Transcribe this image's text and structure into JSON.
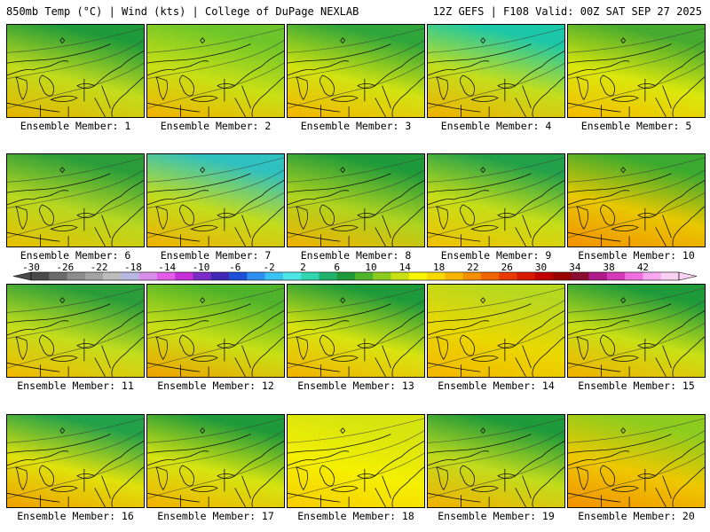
{
  "header": {
    "left": "850mb Temp (°C) | Wind (kts) | College of DuPage NEXLAB",
    "right": "12Z GEFS | F108 Valid: 00Z SAT SEP 27 2025"
  },
  "legend": {
    "tick_labels": [
      "-30",
      "-26",
      "-22",
      "-18",
      "-14",
      "-10",
      "-6",
      "-2",
      "2",
      "6",
      "10",
      "14",
      "18",
      "22",
      "26",
      "30",
      "34",
      "38",
      "42"
    ],
    "colors": [
      "#4a4a4a",
      "#6b6b6b",
      "#8c8c8c",
      "#a3a3a3",
      "#bdbdbd",
      "#b7b7e4",
      "#d98fea",
      "#e25ce8",
      "#c72fd6",
      "#7b2bc6",
      "#4127b8",
      "#1d4fd9",
      "#2f8ff0",
      "#38c3f3",
      "#4de5e8",
      "#2fd6b0",
      "#20b26a",
      "#1f9a3a",
      "#4eb32a",
      "#8ccc1f",
      "#c9e015",
      "#f7f500",
      "#f7d900",
      "#f7b500",
      "#f58f00",
      "#ef6500",
      "#e63a00",
      "#d81b00",
      "#c00000",
      "#9a0000",
      "#8a0c2e",
      "#b01a8c",
      "#d63ab8",
      "#f06fe0",
      "#f7a8f0",
      "#fad0f5"
    ]
  },
  "members": [
    {
      "label": "Ensemble Member: 1",
      "south": "#e6b400",
      "mid": "#c3dc1c",
      "north": "#1f9a3a"
    },
    {
      "label": "Ensemble Member: 2",
      "south": "#f2b100",
      "mid": "#c9e015",
      "north": "#6cc52a"
    },
    {
      "label": "Ensemble Member: 3",
      "south": "#f5b400",
      "mid": "#d2e310",
      "north": "#2fa53a"
    },
    {
      "label": "Ensemble Member: 4",
      "south": "#f0b000",
      "mid": "#c4de1c",
      "north": "#1bc7a8"
    },
    {
      "label": "Ensemble Member: 5",
      "south": "#f5bb00",
      "mid": "#dbe70c",
      "north": "#45aa30"
    },
    {
      "label": "Ensemble Member: 6",
      "south": "#e8c000",
      "mid": "#b9d820",
      "north": "#2a9d3a"
    },
    {
      "label": "Ensemble Member: 7",
      "south": "#f0b000",
      "mid": "#c3dc1c",
      "north": "#2fc0c0"
    },
    {
      "label": "Ensemble Member: 8",
      "south": "#f0b000",
      "mid": "#b0d41f",
      "north": "#1f9a3a"
    },
    {
      "label": "Ensemble Member: 9",
      "south": "#f2c000",
      "mid": "#c6de18",
      "north": "#22a04a"
    },
    {
      "label": "Ensemble Member: 10",
      "south": "#f39000",
      "mid": "#e8c800",
      "north": "#3aaa30"
    },
    {
      "label": "Ensemble Member: 11",
      "south": "#f2b800",
      "mid": "#c4de1c",
      "north": "#2a9d3a"
    },
    {
      "label": "Ensemble Member: 12",
      "south": "#f0a000",
      "mid": "#c9e015",
      "north": "#4eb32a"
    },
    {
      "label": "Ensemble Member: 13",
      "south": "#f2b100",
      "mid": "#d8e410",
      "north": "#1f9a3a"
    },
    {
      "label": "Ensemble Member: 14",
      "south": "#f3b500",
      "mid": "#ead800",
      "north": "#b8d820"
    },
    {
      "label": "Ensemble Member: 15",
      "south": "#f2b000",
      "mid": "#c9e015",
      "north": "#1f9a3a"
    },
    {
      "label": "Ensemble Member: 16",
      "south": "#f0a000",
      "mid": "#e0e20c",
      "north": "#22a04a"
    },
    {
      "label": "Ensemble Member: 17",
      "south": "#f2b100",
      "mid": "#d6e410",
      "north": "#1f9a3a"
    },
    {
      "label": "Ensemble Member: 18",
      "south": "#f7cc00",
      "mid": "#f5f000",
      "north": "#d6e410"
    },
    {
      "label": "Ensemble Member: 19",
      "south": "#f2b000",
      "mid": "#c3dc1c",
      "north": "#1f9a3a"
    },
    {
      "label": "Ensemble Member: 20",
      "south": "#f39000",
      "mid": "#eec800",
      "north": "#8ccc1f"
    }
  ]
}
